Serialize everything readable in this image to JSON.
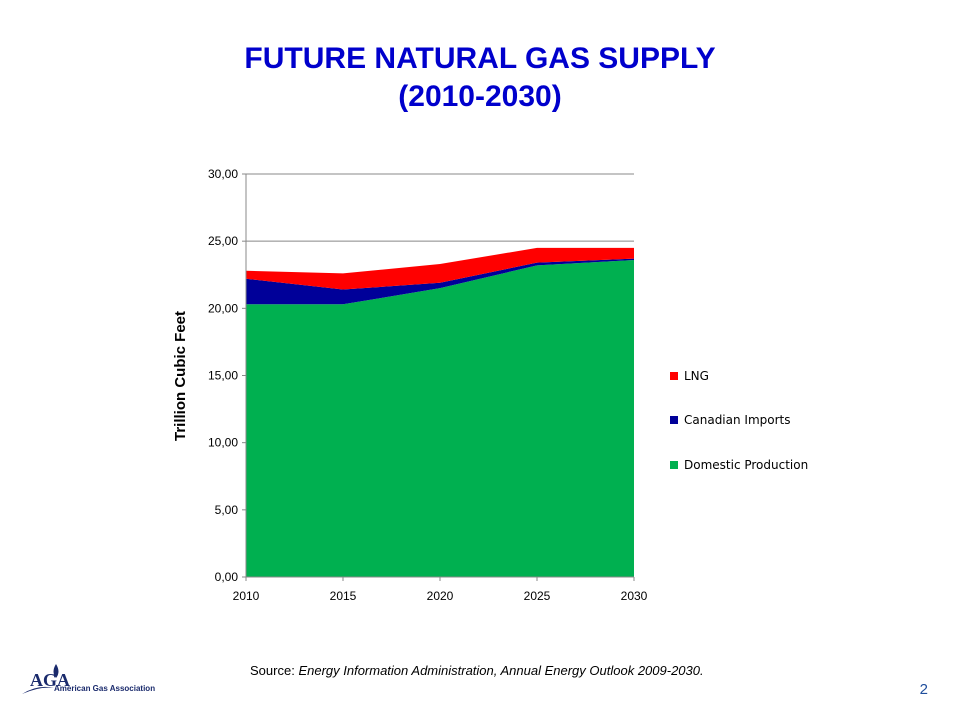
{
  "slide": {
    "title_line1": "FUTURE NATURAL GAS SUPPLY",
    "title_line2": "(2010-2030)",
    "source_label": "Source:",
    "source_text": "Energy Information Administration, Annual Energy Outlook 2009-2030.",
    "page_number": "2",
    "logo_org": "American Gas Association",
    "logo_mark": "AGA"
  },
  "colors": {
    "title": "#0000cc",
    "lng": "#ff0000",
    "canadian": "#000099",
    "domestic": "#00b050"
  },
  "chart_data": {
    "type": "area",
    "stacked": true,
    "title": "",
    "xlabel": "",
    "ylabel": "Trillion Cubic Feet",
    "x": [
      2010,
      2015,
      2020,
      2025,
      2030
    ],
    "x_tick_labels": [
      "2010",
      "2015",
      "2020",
      "2025",
      "2030"
    ],
    "ylim": [
      0,
      30
    ],
    "y_ticks": [
      0,
      5,
      10,
      15,
      20,
      25,
      30
    ],
    "y_tick_labels": [
      "0,00",
      "5,00",
      "10,00",
      "15,00",
      "20,00",
      "25,00",
      "30,00"
    ],
    "grid": true,
    "legend_position": "right",
    "series": [
      {
        "name": "Domestic Production",
        "color": "#00b050",
        "values": [
          20.3,
          20.3,
          21.5,
          23.2,
          23.6
        ]
      },
      {
        "name": "Canadian Imports",
        "color": "#000099",
        "values": [
          1.9,
          1.1,
          0.4,
          0.2,
          0.1
        ]
      },
      {
        "name": "LNG",
        "color": "#ff0000",
        "values": [
          0.6,
          1.2,
          1.4,
          1.1,
          0.8
        ]
      }
    ],
    "legend_order": [
      "LNG",
      "Canadian Imports",
      "Domestic Production"
    ]
  }
}
